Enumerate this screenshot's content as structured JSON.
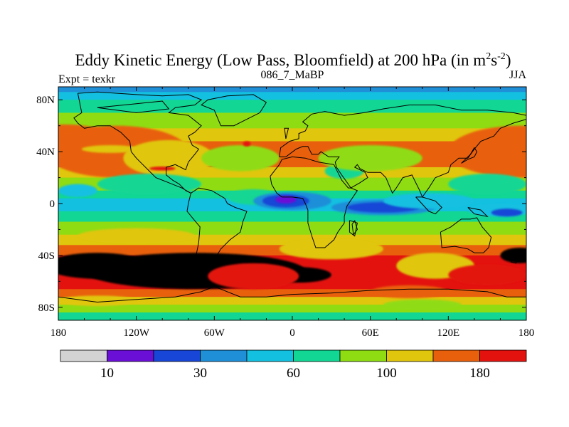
{
  "chart_data": {
    "type": "heatmap",
    "title": "Eddy Kinetic Energy (Low Pass, Bloomfield) at 200 hPa (in m",
    "title_units_sup1": "2",
    "title_units_s": "s",
    "title_units_sup2": "-2",
    "title_close": ")",
    "subtitle_left": "Expt = texkr",
    "subtitle_center": "086_7_MaBP",
    "subtitle_right": "JJA",
    "x_ticks": [
      {
        "value": -180,
        "label": "180"
      },
      {
        "value": -120,
        "label": "120W"
      },
      {
        "value": -60,
        "label": "60W"
      },
      {
        "value": 0,
        "label": "0"
      },
      {
        "value": 60,
        "label": "60E"
      },
      {
        "value": 120,
        "label": "120E"
      },
      {
        "value": 180,
        "label": "180"
      }
    ],
    "y_ticks": [
      {
        "value": 80,
        "label": "80N"
      },
      {
        "value": 40,
        "label": "40N"
      },
      {
        "value": 0,
        "label": "0"
      },
      {
        "value": -40,
        "label": "40S"
      },
      {
        "value": -80,
        "label": "80S"
      }
    ],
    "xlim": [
      -180,
      180
    ],
    "ylim": [
      -90,
      90
    ],
    "colorbar": {
      "colors": [
        "#d3d3d3",
        "#6a0fd6",
        "#1846d6",
        "#1f8fd8",
        "#13c0e0",
        "#12d694",
        "#8fdc13",
        "#e0c60d",
        "#e8600c",
        "#e3120f"
      ],
      "labels": [
        {
          "after_box": 1,
          "text": "10"
        },
        {
          "after_box": 3,
          "text": "30"
        },
        {
          "after_box": 5,
          "text": "60"
        },
        {
          "after_box": 7,
          "text": "100"
        },
        {
          "after_box": 9,
          "text": "180"
        }
      ]
    },
    "field": {
      "zonal_bands": [
        {
          "lat": 90,
          "level": 3
        },
        {
          "lat": 86,
          "level": 4
        },
        {
          "lat": 80,
          "level": 5
        },
        {
          "lat": 70,
          "level": 6
        },
        {
          "lat": 58,
          "level": 7
        },
        {
          "lat": 48,
          "level": 8
        },
        {
          "lat": 36,
          "level": 8
        },
        {
          "lat": 28,
          "level": 7
        },
        {
          "lat": 20,
          "level": 6
        },
        {
          "lat": 10,
          "level": 5
        },
        {
          "lat": 4,
          "level": 4
        },
        {
          "lat": 0,
          "level": 4
        },
        {
          "lat": -6,
          "level": 5
        },
        {
          "lat": -14,
          "level": 6
        },
        {
          "lat": -24,
          "level": 7
        },
        {
          "lat": -32,
          "level": 8
        },
        {
          "lat": -40,
          "level": 9
        },
        {
          "lat": -48,
          "level": 9
        },
        {
          "lat": -58,
          "level": 9
        },
        {
          "lat": -66,
          "level": 8
        },
        {
          "lat": -72,
          "level": 7
        },
        {
          "lat": -78,
          "level": 6
        },
        {
          "lat": -84,
          "level": 5
        },
        {
          "lat": -90,
          "level": 3
        }
      ],
      "blobs": [
        {
          "lon": -175,
          "lat": 45,
          "rlon": 45,
          "rlat": 16,
          "level": 8
        },
        {
          "lon": -135,
          "lat": 40,
          "rlon": 55,
          "rlat": 20,
          "level": 8
        },
        {
          "lon": -140,
          "lat": 42,
          "rlon": 22,
          "rlat": 3,
          "level": 7
        },
        {
          "lon": 175,
          "lat": 40,
          "rlon": 55,
          "rlat": 20,
          "level": 8
        },
        {
          "lon": -95,
          "lat": 35,
          "rlon": 35,
          "rlat": 14,
          "level": 7
        },
        {
          "lon": -40,
          "lat": 35,
          "rlon": 30,
          "rlat": 10,
          "level": 6
        },
        {
          "lon": -35,
          "lat": 46,
          "rlon": 3,
          "rlat": 2,
          "level": 9
        },
        {
          "lon": -100,
          "lat": 27,
          "rlon": 10,
          "rlat": 1.5,
          "level": 9
        },
        {
          "lon": -30,
          "lat": 5,
          "rlon": 20,
          "rlat": 6,
          "level": 5
        },
        {
          "lon": 0,
          "lat": 2,
          "rlon": 30,
          "rlat": 7,
          "level": 3
        },
        {
          "lon": -5,
          "lat": 2,
          "rlon": 18,
          "rlat": 5,
          "level": 2
        },
        {
          "lon": -5,
          "lat": 3,
          "rlon": 8,
          "rlat": 3,
          "level": 1
        },
        {
          "lon": 70,
          "lat": -3,
          "rlon": 40,
          "rlat": 6,
          "level": 3
        },
        {
          "lon": 70,
          "lat": -3,
          "rlon": 28,
          "rlat": 4,
          "level": 2
        },
        {
          "lon": 105,
          "lat": 2,
          "rlon": 35,
          "rlat": 6,
          "level": 4
        },
        {
          "lon": 160,
          "lat": -5,
          "rlon": 25,
          "rlat": 5,
          "level": 4
        },
        {
          "lon": 165,
          "lat": -7,
          "rlon": 12,
          "rlat": 3,
          "level": 2
        },
        {
          "lon": 40,
          "lat": 25,
          "rlon": 15,
          "rlat": 6,
          "level": 5
        },
        {
          "lon": 60,
          "lat": 35,
          "rlon": 40,
          "rlat": 10,
          "level": 6
        },
        {
          "lon": -165,
          "lat": 10,
          "rlon": 15,
          "rlat": 5,
          "level": 4
        },
        {
          "lon": -110,
          "lat": 15,
          "rlon": 40,
          "rlat": 8,
          "level": 5
        },
        {
          "lon": 150,
          "lat": 15,
          "rlon": 30,
          "rlat": 8,
          "level": 5
        },
        {
          "lon": -120,
          "lat": -25,
          "rlon": 45,
          "rlat": 6,
          "level": 7
        },
        {
          "lon": 30,
          "lat": -35,
          "rlon": 40,
          "rlat": 8,
          "level": 7
        },
        {
          "lon": 110,
          "lat": -48,
          "rlon": 30,
          "rlat": 10,
          "level": 7
        },
        {
          "lon": -75,
          "lat": -52,
          "rlon": 85,
          "rlat": 14,
          "level": 10
        },
        {
          "lon": -150,
          "lat": -48,
          "rlon": 40,
          "rlat": 10,
          "level": 10
        },
        {
          "lon": 5,
          "lat": -55,
          "rlon": 25,
          "rlat": 6,
          "level": 10
        },
        {
          "lon": 175,
          "lat": -40,
          "rlon": 15,
          "rlat": 6,
          "level": 10
        },
        {
          "lon": -30,
          "lat": -56,
          "rlon": 35,
          "rlat": 10,
          "level": 9
        },
        {
          "lon": 150,
          "lat": -55,
          "rlon": 30,
          "rlat": 8,
          "level": 9
        },
        {
          "lon": 90,
          "lat": -68,
          "rlon": 30,
          "rlat": 5,
          "level": 8
        },
        {
          "lon": -150,
          "lat": -75,
          "rlon": 30,
          "rlat": 4,
          "level": 7
        },
        {
          "lon": 100,
          "lat": -78,
          "rlon": 30,
          "rlat": 4,
          "level": 6
        }
      ]
    },
    "coastlines": [
      [
        [
          -165,
          85
        ],
        [
          -150,
          86
        ],
        [
          -120,
          84
        ],
        [
          -100,
          83
        ],
        [
          -80,
          84
        ],
        [
          -70,
          80
        ],
        [
          -75,
          76
        ],
        [
          -90,
          74
        ],
        [
          -95,
          70
        ],
        [
          -80,
          68
        ],
        [
          -70,
          60
        ],
        [
          -75,
          55
        ],
        [
          -80,
          52
        ],
        [
          -77,
          45
        ],
        [
          -72,
          42
        ],
        [
          -75,
          38
        ],
        [
          -80,
          32
        ],
        [
          -82,
          26
        ],
        [
          -90,
          30
        ],
        [
          -97,
          28
        ],
        [
          -97,
          22
        ],
        [
          -92,
          18
        ],
        [
          -87,
          15
        ],
        [
          -82,
          10
        ],
        [
          -78,
          8
        ],
        [
          -85,
          12
        ],
        [
          -95,
          16
        ],
        [
          -105,
          20
        ],
        [
          -110,
          25
        ],
        [
          -115,
          30
        ],
        [
          -120,
          35
        ],
        [
          -124,
          40
        ],
        [
          -125,
          48
        ],
        [
          -132,
          55
        ],
        [
          -140,
          60
        ],
        [
          -150,
          60
        ],
        [
          -160,
          58
        ],
        [
          -165,
          62
        ],
        [
          -168,
          66
        ],
        [
          -162,
          70
        ],
        [
          -165,
          85
        ]
      ],
      [
        [
          -78,
          8
        ],
        [
          -72,
          12
        ],
        [
          -62,
          10
        ],
        [
          -52,
          4
        ],
        [
          -50,
          0
        ],
        [
          -44,
          -3
        ],
        [
          -35,
          -6
        ],
        [
          -38,
          -14
        ],
        [
          -40,
          -22
        ],
        [
          -48,
          -28
        ],
        [
          -55,
          -35
        ],
        [
          -58,
          -40
        ],
        [
          -65,
          -45
        ],
        [
          -68,
          -52
        ],
        [
          -72,
          -55
        ],
        [
          -75,
          -50
        ],
        [
          -74,
          -40
        ],
        [
          -72,
          -30
        ],
        [
          -71,
          -18
        ],
        [
          -76,
          -12
        ],
        [
          -81,
          -6
        ],
        [
          -80,
          0
        ],
        [
          -78,
          8
        ]
      ],
      [
        [
          -55,
          60
        ],
        [
          -45,
          60
        ],
        [
          -35,
          65
        ],
        [
          -25,
          70
        ],
        [
          -20,
          78
        ],
        [
          -30,
          84
        ],
        [
          -50,
          83
        ],
        [
          -65,
          80
        ],
        [
          -70,
          76
        ],
        [
          -60,
          72
        ],
        [
          -55,
          60
        ]
      ],
      [
        [
          -10,
          36
        ],
        [
          -9,
          43
        ],
        [
          -2,
          48
        ],
        [
          5,
          50
        ],
        [
          5,
          54
        ],
        [
          10,
          56
        ],
        [
          12,
          60
        ],
        [
          8,
          63
        ],
        [
          15,
          69
        ],
        [
          25,
          71
        ],
        [
          40,
          68
        ],
        [
          55,
          70
        ],
        [
          70,
          73
        ],
        [
          90,
          76
        ],
        [
          110,
          76
        ],
        [
          130,
          72
        ],
        [
          150,
          72
        ],
        [
          170,
          70
        ],
        [
          180,
          68
        ],
        [
          180,
          65
        ],
        [
          170,
          62
        ],
        [
          160,
          58
        ],
        [
          155,
          52
        ],
        [
          145,
          48
        ],
        [
          140,
          42
        ],
        [
          135,
          35
        ],
        [
          128,
          35
        ],
        [
          122,
          30
        ],
        [
          120,
          24
        ],
        [
          110,
          20
        ],
        [
          105,
          12
        ],
        [
          100,
          5
        ],
        [
          98,
          10
        ],
        [
          92,
          22
        ],
        [
          85,
          20
        ],
        [
          80,
          12
        ],
        [
          77,
          8
        ],
        [
          72,
          20
        ],
        [
          68,
          24
        ],
        [
          58,
          24
        ],
        [
          52,
          27
        ],
        [
          50,
          30
        ],
        [
          48,
          28
        ],
        [
          56,
          24
        ],
        [
          58,
          20
        ],
        [
          52,
          16
        ],
        [
          45,
          12
        ],
        [
          43,
          15
        ],
        [
          38,
          22
        ],
        [
          34,
          28
        ],
        [
          33,
          32
        ],
        [
          36,
          36
        ],
        [
          28,
          36
        ],
        [
          25,
          38
        ],
        [
          22,
          40
        ],
        [
          20,
          38
        ],
        [
          15,
          38
        ],
        [
          12,
          44
        ],
        [
          8,
          44
        ],
        [
          3,
          42
        ],
        [
          -5,
          36
        ],
        [
          -10,
          36
        ]
      ],
      [
        [
          -17,
          21
        ],
        [
          -16,
          15
        ],
        [
          -12,
          8
        ],
        [
          -8,
          5
        ],
        [
          0,
          5
        ],
        [
          8,
          4
        ],
        [
          10,
          0
        ],
        [
          12,
          -5
        ],
        [
          12,
          -15
        ],
        [
          15,
          -25
        ],
        [
          18,
          -34
        ],
        [
          25,
          -34
        ],
        [
          32,
          -28
        ],
        [
          35,
          -22
        ],
        [
          40,
          -15
        ],
        [
          40,
          -10
        ],
        [
          42,
          -2
        ],
        [
          50,
          10
        ],
        [
          45,
          12
        ],
        [
          43,
          12
        ],
        [
          38,
          18
        ],
        [
          32,
          30
        ],
        [
          20,
          32
        ],
        [
          10,
          35
        ],
        [
          0,
          36
        ],
        [
          -8,
          34
        ],
        [
          -10,
          30
        ],
        [
          -17,
          21
        ]
      ],
      [
        [
          44,
          -13
        ],
        [
          50,
          -15
        ],
        [
          48,
          -25
        ],
        [
          44,
          -22
        ],
        [
          44,
          -13
        ]
      ],
      [
        [
          114,
          -22
        ],
        [
          122,
          -18
        ],
        [
          130,
          -12
        ],
        [
          137,
          -12
        ],
        [
          142,
          -11
        ],
        [
          146,
          -18
        ],
        [
          153,
          -26
        ],
        [
          151,
          -34
        ],
        [
          147,
          -38
        ],
        [
          140,
          -38
        ],
        [
          135,
          -35
        ],
        [
          125,
          -33
        ],
        [
          115,
          -34
        ],
        [
          114,
          -22
        ]
      ],
      [
        [
          -180,
          -72
        ],
        [
          -150,
          -76
        ],
        [
          -120,
          -74
        ],
        [
          -90,
          -72
        ],
        [
          -70,
          -68
        ],
        [
          -60,
          -64
        ],
        [
          -55,
          -66
        ],
        [
          -40,
          -72
        ],
        [
          -20,
          -72
        ],
        [
          0,
          -70
        ],
        [
          30,
          -69
        ],
        [
          60,
          -67
        ],
        [
          90,
          -66
        ],
        [
          120,
          -66
        ],
        [
          150,
          -68
        ],
        [
          165,
          -72
        ],
        [
          180,
          -72
        ]
      ],
      [
        [
          -5,
          50
        ],
        [
          -3,
          58
        ],
        [
          -6,
          58
        ],
        [
          -5,
          50
        ]
      ],
      [
        [
          130,
          31
        ],
        [
          135,
          34
        ],
        [
          140,
          36
        ],
        [
          142,
          40
        ],
        [
          140,
          43
        ],
        [
          137,
          38
        ],
        [
          130,
          31
        ]
      ],
      [
        [
          95,
          5
        ],
        [
          105,
          -6
        ],
        [
          110,
          -8
        ],
        [
          115,
          -3
        ],
        [
          110,
          2
        ],
        [
          100,
          5
        ],
        [
          95,
          5
        ]
      ],
      [
        [
          135,
          -3
        ],
        [
          145,
          -5
        ],
        [
          150,
          -10
        ],
        [
          140,
          -8
        ],
        [
          135,
          -3
        ]
      ],
      [
        [
          168,
          -45
        ],
        [
          175,
          -40
        ],
        [
          178,
          -38
        ],
        [
          172,
          -46
        ],
        [
          168,
          -45
        ]
      ],
      [
        [
          -150,
          74
        ],
        [
          -120,
          77
        ],
        [
          -100,
          79
        ],
        [
          -95,
          73
        ],
        [
          -120,
          70
        ],
        [
          -150,
          74
        ]
      ],
      [
        [
          48,
          -13
        ],
        [
          50,
          -20
        ],
        [
          47,
          -24
        ],
        [
          46,
          -16
        ],
        [
          48,
          -13
        ]
      ]
    ]
  }
}
